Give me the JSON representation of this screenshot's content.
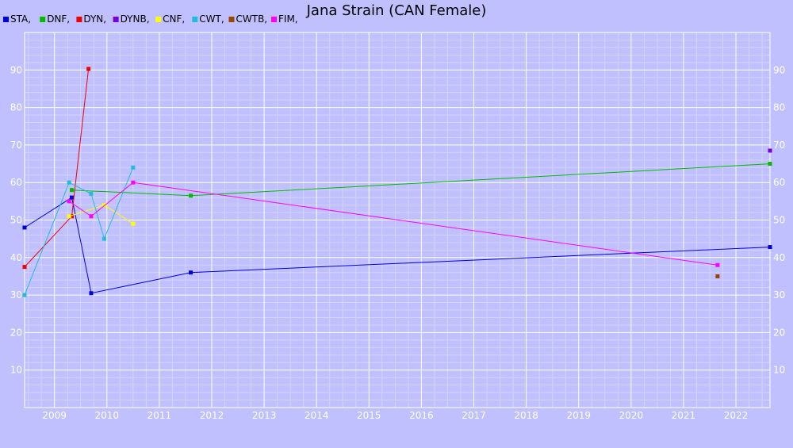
{
  "chart_data": {
    "type": "line",
    "title": "Jana Strain (CAN Female)",
    "xlabel": "",
    "ylabel": "",
    "x_ticks": [
      "2009",
      "2010",
      "2011",
      "2012",
      "2013",
      "2014",
      "2015",
      "2016",
      "2017",
      "2018",
      "2019",
      "2020",
      "2021",
      "2022"
    ],
    "y_ticks": [
      10,
      20,
      30,
      40,
      50,
      60,
      70,
      80,
      90
    ],
    "xlim": [
      2008.43,
      2022.65
    ],
    "ylim": [
      0,
      100
    ],
    "grid": true,
    "legend_position": "top-left",
    "series": [
      {
        "name": "STA,",
        "color": "#0000dd",
        "points": [
          [
            2008.43,
            48.0
          ],
          [
            2009.33,
            56.0
          ],
          [
            2009.7,
            30.5
          ],
          [
            2011.6,
            36.0
          ],
          [
            2022.65,
            42.8
          ]
        ]
      },
      {
        "name": "DNF,",
        "color": "#00bb00",
        "points": [
          [
            2009.33,
            58.0
          ],
          [
            2011.6,
            56.5
          ],
          [
            2022.65,
            65.0
          ]
        ]
      },
      {
        "name": "DYN,",
        "color": "#ee0000",
        "points": [
          [
            2008.43,
            37.5
          ],
          [
            2009.33,
            51.0
          ],
          [
            2009.65,
            90.3
          ]
        ]
      },
      {
        "name": "DYNB,",
        "color": "#7700dd",
        "points": [
          [
            2022.65,
            68.5
          ]
        ]
      },
      {
        "name": "CNF,",
        "color": "#ffff00",
        "points": [
          [
            2009.28,
            51.0
          ],
          [
            2009.95,
            54.0
          ],
          [
            2010.5,
            49.0
          ]
        ]
      },
      {
        "name": "CWT,",
        "color": "#22bbdd",
        "points": [
          [
            2008.43,
            30.0
          ],
          [
            2009.28,
            60.0
          ],
          [
            2009.7,
            57.0
          ],
          [
            2009.95,
            45.0
          ],
          [
            2010.5,
            64.0
          ]
        ]
      },
      {
        "name": "CWTB,",
        "color": "#994400",
        "points": [
          [
            2021.65,
            35.0
          ]
        ]
      },
      {
        "name": "FIM,",
        "color": "#ff00ff",
        "points": [
          [
            2009.28,
            55.0
          ],
          [
            2009.7,
            51.0
          ],
          [
            2010.5,
            60.0
          ],
          [
            2021.65,
            38.0
          ]
        ]
      }
    ]
  }
}
